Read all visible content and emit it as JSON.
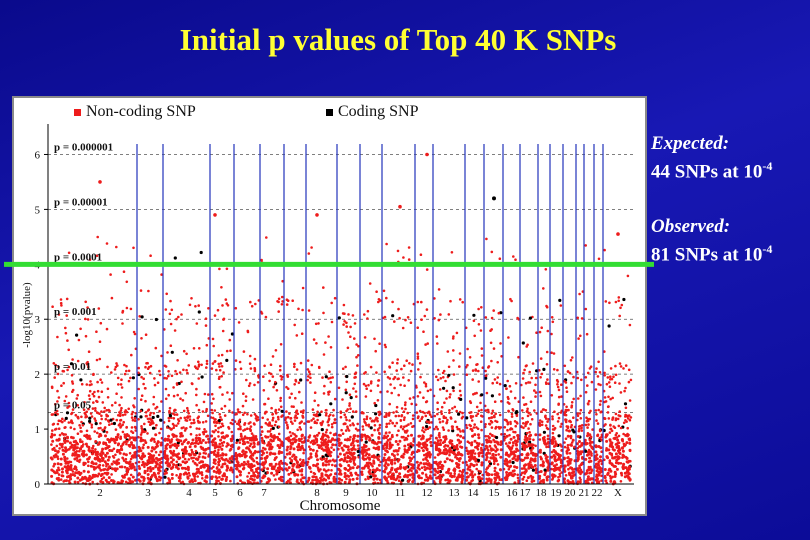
{
  "slide": {
    "title": "Initial p values of Top 40 K SNPs"
  },
  "legend": {
    "noncoding_label": "Non-coding SNP",
    "coding_label": "Coding SNP"
  },
  "annotations": {
    "expected_label": "Expected:",
    "expected_text": "44 SNPs at 10",
    "expected_exp": "-4",
    "observed_label": "Observed:",
    "observed_text": "81 SNPs at 10",
    "observed_exp": "-4"
  },
  "colors": {
    "background": "#1414aa",
    "title": "#ffff33",
    "noncoding": "#ee1c1c",
    "coding": "#000000",
    "chromosome_lines": "#2233bb",
    "threshold_line": "#33dd33"
  },
  "chart_data": {
    "type": "scatter",
    "title": "",
    "xlabel": "Chromosome",
    "ylabel": "-log10(pvalue)",
    "ylim": [
      0,
      6.3
    ],
    "y_ticks": [
      0,
      1,
      2,
      3,
      4,
      5,
      6
    ],
    "chromosome_labels": [
      "2",
      "3",
      "4",
      "5",
      "6",
      "7",
      "8",
      "9",
      "10",
      "11",
      "12",
      "13",
      "14",
      "15",
      "16",
      "17",
      "18",
      "19",
      "20",
      "21",
      "22",
      "X"
    ],
    "chromosome_label_positions": [
      100,
      148,
      189,
      215,
      240,
      264,
      317,
      346,
      372,
      400,
      427,
      454,
      473,
      494,
      512,
      525,
      541,
      556,
      570,
      584,
      597,
      618
    ],
    "chromosome_boundaries": [
      137,
      163,
      210,
      234,
      260,
      284,
      306,
      337,
      360,
      382,
      415,
      433,
      465,
      484,
      503,
      520,
      538,
      550,
      563,
      576,
      584,
      594,
      603
    ],
    "pvalue_lines": [
      {
        "label": "p = 0.000001",
        "y": 6
      },
      {
        "label": "p = 0.00001",
        "y": 5
      },
      {
        "label": "p = 0.0001",
        "y": 4
      },
      {
        "label": "p = 0.001",
        "y": 3
      },
      {
        "label": "p = 0.01",
        "y": 2
      },
      {
        "label": "p = 0.05",
        "y": 1.3
      }
    ],
    "threshold_line_y": 4,
    "series": [
      {
        "name": "Non-coding SNP",
        "color": "#ee1c1c"
      },
      {
        "name": "Coding SNP",
        "color": "#000000"
      }
    ],
    "notable_points": [
      {
        "series": "Coding SNP",
        "chrom": "15",
        "y": 5.2
      },
      {
        "series": "Non-coding SNP",
        "chrom": "5",
        "y": 4.9
      },
      {
        "series": "Non-coding SNP",
        "chrom": "11",
        "y": 5.05
      },
      {
        "series": "Non-coding SNP",
        "chrom": "12",
        "y": 6.0
      },
      {
        "series": "Non-coding SNP",
        "chrom": "2",
        "y": 5.5
      },
      {
        "series": "Non-coding SNP",
        "chrom": "X",
        "y": 4.55
      },
      {
        "series": "Non-coding SNP",
        "chrom": "8",
        "y": 4.9
      }
    ]
  }
}
